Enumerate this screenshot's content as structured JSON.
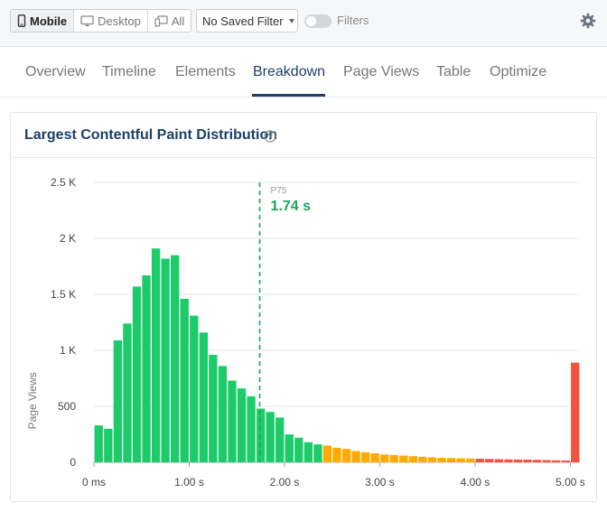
{
  "toolbar": {
    "devices": [
      {
        "label": "Mobile",
        "icon": "mobile-icon",
        "active": true
      },
      {
        "label": "Desktop",
        "icon": "desktop-icon",
        "active": false
      },
      {
        "label": "All",
        "icon": "all-devices-icon",
        "active": false
      }
    ],
    "saved_filter": "No Saved Filter",
    "filters_label": "Filters",
    "filters_enabled": false
  },
  "tabs": [
    "Overview",
    "Timeline",
    "Elements",
    "Breakdown",
    "Page Views",
    "Table",
    "Optimize"
  ],
  "active_tab": "Breakdown",
  "panel": {
    "title": "Largest Contentful Paint Distribution"
  },
  "colors": {
    "good": "#1ecb6b",
    "needs_improvement": "#ffaa00",
    "poor": "#f25341",
    "marker": "#1ca65a",
    "accent": "#1c3f66"
  },
  "chart_data": {
    "type": "bar",
    "title": "Largest Contentful Paint Distribution",
    "xlabel": "",
    "ylabel": "Page Views",
    "xlim": [
      0,
      5.1
    ],
    "ylim": [
      0,
      2500
    ],
    "x_tick_values": [
      0,
      1,
      2,
      3,
      4,
      5
    ],
    "x_tick_labels": [
      "0 ms",
      "1.00 s",
      "2.00 s",
      "3.00 s",
      "4.00 s",
      "5.00 s"
    ],
    "y_tick_values": [
      0,
      500,
      1000,
      1500,
      2000,
      2500
    ],
    "y_tick_labels": [
      "0",
      "500",
      "1 K",
      "1.5 K",
      "2 K",
      "2.5 K"
    ],
    "grid": true,
    "bin_width_s": 0.1,
    "bins_start_s": [
      0.0,
      0.1,
      0.2,
      0.3,
      0.4,
      0.5,
      0.6,
      0.7,
      0.8,
      0.9,
      1.0,
      1.1,
      1.2,
      1.3,
      1.4,
      1.5,
      1.6,
      1.7,
      1.8,
      1.9,
      2.0,
      2.1,
      2.2,
      2.3,
      2.4,
      2.5,
      2.6,
      2.7,
      2.8,
      2.9,
      3.0,
      3.1,
      3.2,
      3.3,
      3.4,
      3.5,
      3.6,
      3.7,
      3.8,
      3.9,
      4.0,
      4.1,
      4.2,
      4.3,
      4.4,
      4.5,
      4.6,
      4.7,
      4.8,
      4.9,
      5.0
    ],
    "values": [
      330,
      300,
      1090,
      1240,
      1570,
      1670,
      1910,
      1820,
      1850,
      1460,
      1310,
      1160,
      960,
      860,
      730,
      660,
      590,
      480,
      450,
      400,
      250,
      220,
      180,
      160,
      150,
      130,
      120,
      100,
      90,
      80,
      70,
      65,
      60,
      55,
      50,
      45,
      40,
      38,
      36,
      34,
      32,
      30,
      28,
      26,
      25,
      24,
      22,
      20,
      18,
      16,
      890
    ],
    "categories": [
      "good",
      "good",
      "good",
      "good",
      "good",
      "good",
      "good",
      "good",
      "good",
      "good",
      "good",
      "good",
      "good",
      "good",
      "good",
      "good",
      "good",
      "good",
      "good",
      "good",
      "good",
      "good",
      "good",
      "good",
      "needs_improvement",
      "needs_improvement",
      "needs_improvement",
      "needs_improvement",
      "needs_improvement",
      "needs_improvement",
      "needs_improvement",
      "needs_improvement",
      "needs_improvement",
      "needs_improvement",
      "needs_improvement",
      "needs_improvement",
      "needs_improvement",
      "needs_improvement",
      "needs_improvement",
      "needs_improvement",
      "poor",
      "poor",
      "poor",
      "poor",
      "poor",
      "poor",
      "poor",
      "poor",
      "poor",
      "poor",
      "poor"
    ],
    "marker": {
      "label": "P75",
      "value_label": "1.74 s",
      "x": 1.74
    }
  }
}
